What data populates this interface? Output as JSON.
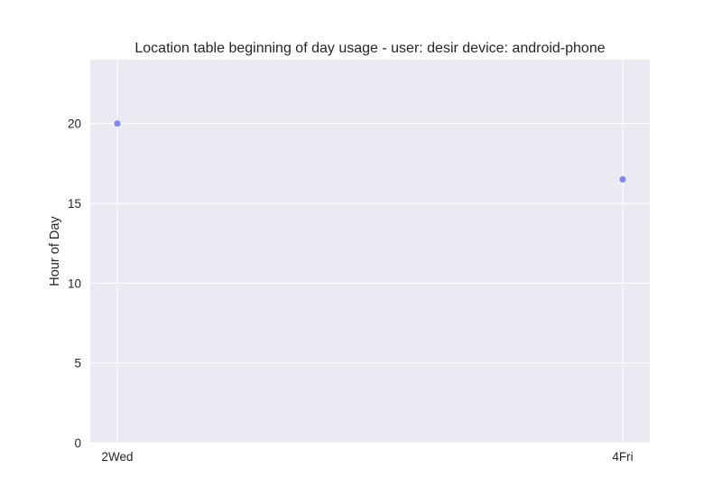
{
  "chart_data": {
    "type": "scatter",
    "title": "Location table beginning of day usage -  user: desir device: android-phone",
    "xlabel": "",
    "ylabel": "Hour of Day",
    "categories": [
      "2Wed",
      "4Fri"
    ],
    "series": [
      {
        "values": [
          20.0,
          16.5
        ]
      }
    ],
    "ylim": [
      0,
      24
    ],
    "yticks": [
      0,
      5,
      10,
      15,
      20
    ],
    "grid": true,
    "colors": {
      "plot_background": "#eaeaf2",
      "grid": "#ffffff",
      "marker": "#7b7ff0",
      "text": "#262626"
    }
  }
}
